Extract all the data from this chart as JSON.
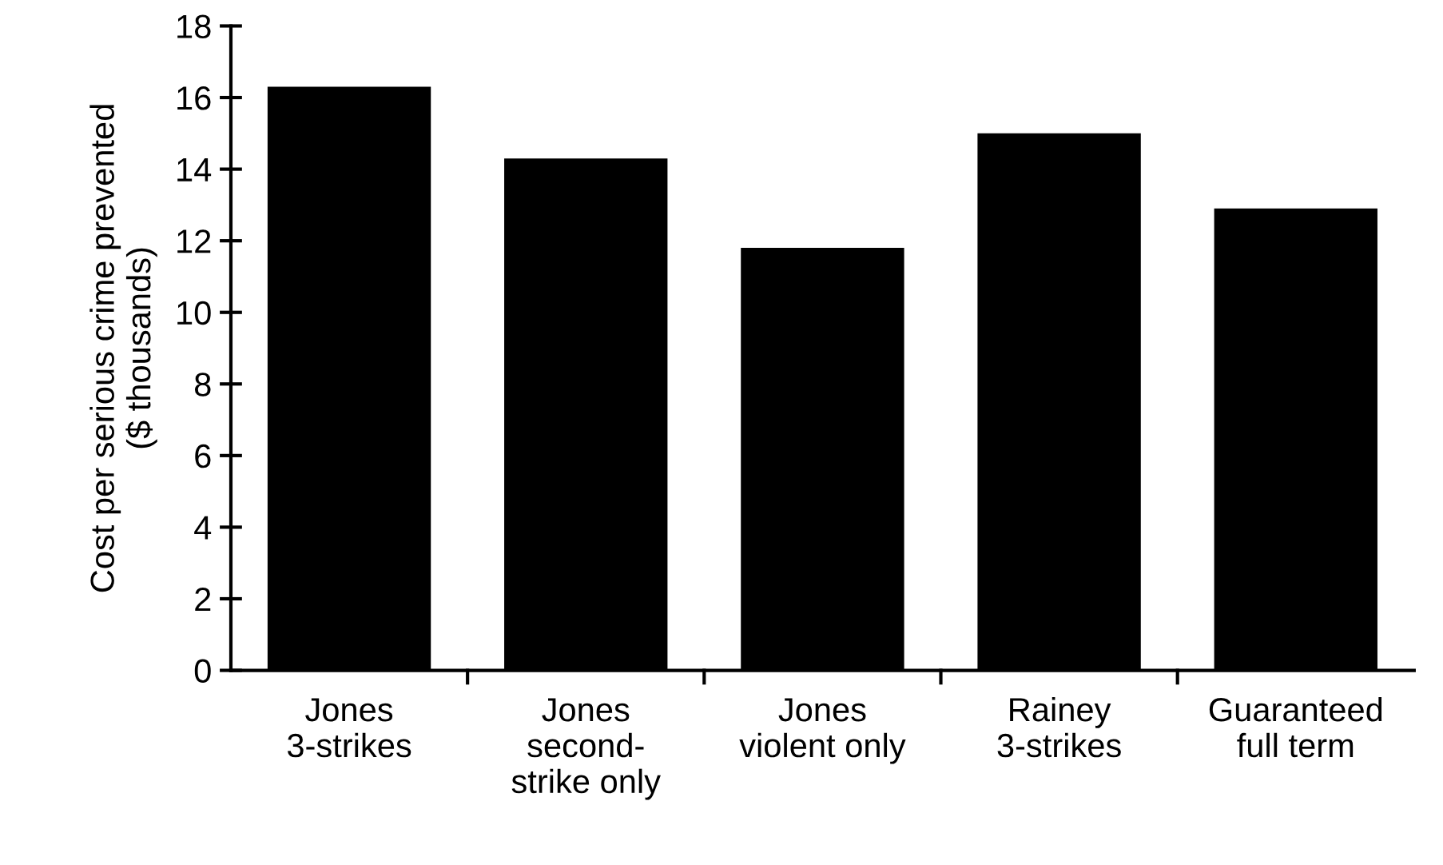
{
  "chart_data": {
    "type": "bar",
    "ylabel": "Cost per serious crime prevented\n($ thousands)",
    "categories": [
      "Jones\n3-strikes",
      "Jones\nsecond-\nstrike only",
      "Jones\nviolent only",
      "Rainey\n3-strikes",
      "Guaranteed\nfull term"
    ],
    "values": [
      16.3,
      14.3,
      11.8,
      15.0,
      12.9
    ],
    "color": "#000000",
    "ylim": [
      0,
      18
    ],
    "yticks": [
      0,
      2,
      4,
      6,
      8,
      10,
      12,
      14,
      16,
      18
    ],
    "grid": false
  }
}
